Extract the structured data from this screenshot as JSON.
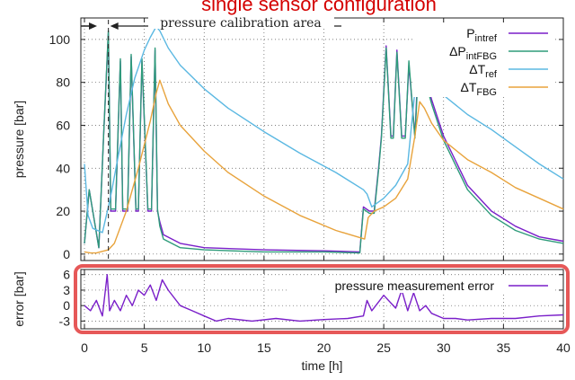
{
  "title": "single sensor configuration",
  "chart_data": [
    {
      "type": "line",
      "annotation": "pressure calibration area",
      "annotation_x_range": [
        0,
        2
      ],
      "xlabel": "",
      "ylabel": "pressure [bar]",
      "xlim": [
        -0.3,
        40
      ],
      "ylim": [
        -3,
        110
      ],
      "yticks": [
        0,
        20,
        40,
        60,
        80,
        100
      ],
      "xticks": [
        0,
        5,
        10,
        15,
        20,
        25,
        30,
        35,
        40
      ],
      "grid": true,
      "legend_position": "top-right",
      "series": [
        {
          "name": "P",
          "sub": "int",
          "subsub": "ref",
          "color": "#7a1fc9",
          "x": [
            0,
            0.4,
            1.2,
            1.6,
            2.0,
            2.2,
            2.6,
            3.0,
            3.2,
            3.6,
            3.9,
            4.3,
            4.5,
            4.8,
            5.3,
            5.6,
            5.9,
            6.1,
            6.3,
            6.6,
            8,
            10,
            15,
            20,
            23,
            23.3,
            23.8,
            24.2,
            24.6,
            24.8,
            25.2,
            25.6,
            25.8,
            26.1,
            26.5,
            26.8,
            27.1,
            27.6,
            27.9,
            28.2,
            29,
            30,
            32,
            34,
            36,
            38,
            40
          ],
          "y": [
            5,
            30,
            3,
            55,
            103,
            20,
            20,
            90,
            20,
            20,
            92,
            20,
            20,
            90,
            20,
            20,
            95,
            20,
            15,
            9,
            5,
            3,
            2,
            1.5,
            1,
            22,
            20,
            20,
            42,
            55,
            97,
            55,
            55,
            95,
            55,
            55,
            88,
            55,
            92,
            88,
            72,
            55,
            32,
            20,
            13,
            8,
            6
          ]
        },
        {
          "name": "ΔP",
          "sub": "int",
          "subsub": "FBG",
          "color": "#2e9b7a",
          "x": [
            0,
            0.4,
            1.2,
            1.6,
            2.0,
            2.2,
            2.6,
            3.0,
            3.2,
            3.6,
            3.9,
            4.3,
            4.5,
            4.8,
            5.3,
            5.6,
            5.9,
            6.1,
            6.3,
            6.6,
            8,
            10,
            15,
            20,
            23,
            23.3,
            23.8,
            24.2,
            24.6,
            24.8,
            25.2,
            25.6,
            25.8,
            26.1,
            26.5,
            26.8,
            27.1,
            27.6,
            27.9,
            28.2,
            29,
            30,
            32,
            34,
            36,
            38,
            40
          ],
          "y": [
            5,
            30,
            3,
            55,
            104,
            21,
            21,
            91,
            21,
            21,
            93,
            21,
            21,
            91,
            21,
            21,
            96,
            21,
            13,
            7,
            3,
            2,
            1,
            1,
            0.5,
            21,
            19,
            19,
            41,
            54,
            96,
            54,
            54,
            94,
            54,
            54,
            90,
            54,
            88,
            86,
            70,
            53,
            30,
            18,
            11,
            7,
            5
          ]
        },
        {
          "name": "ΔT",
          "sub": "ref",
          "subsub": "",
          "color": "#5bb8e2",
          "x": [
            0,
            0.3,
            0.7,
            1.5,
            2.0,
            2.3,
            2.8,
            3.5,
            4.2,
            5.0,
            5.5,
            6.0,
            6.3,
            7,
            8,
            10,
            12,
            15,
            18,
            21,
            23.3,
            23.6,
            24,
            25,
            26,
            27,
            27.5,
            28,
            28.3,
            29,
            30,
            32,
            34,
            36,
            38,
            40
          ],
          "y": [
            42,
            18,
            12,
            10,
            22,
            30,
            45,
            65,
            82,
            95,
            101,
            106,
            104,
            96,
            88,
            77,
            68,
            57,
            47,
            38,
            30,
            28,
            22,
            26,
            32,
            42,
            70,
            99,
            95,
            84,
            74,
            65,
            58,
            50,
            42,
            35
          ]
        },
        {
          "name": "ΔT",
          "sub": "FBG",
          "subsub": "",
          "color": "#e8a33c",
          "x": [
            0,
            0.5,
            1.0,
            2.0,
            2.5,
            3.5,
            4.5,
            5.5,
            6.0,
            6.3,
            7,
            8,
            10,
            12,
            15,
            18,
            21,
            23.4,
            23.7,
            24.2,
            25,
            26,
            27,
            27.6,
            28,
            28.4,
            29,
            30,
            32,
            34,
            36,
            38,
            40
          ],
          "y": [
            1,
            0.5,
            0.5,
            2,
            5,
            20,
            40,
            62,
            75,
            81,
            70,
            60,
            48,
            38,
            27,
            18,
            11,
            7,
            17,
            20,
            22,
            26,
            35,
            55,
            71,
            68,
            61,
            53,
            44,
            38,
            31,
            26,
            21
          ]
        }
      ]
    },
    {
      "type": "line",
      "xlabel": "time [h]",
      "ylabel": "error [bar]",
      "xlim": [
        -0.3,
        40
      ],
      "ylim": [
        -4.5,
        7
      ],
      "yticks": [
        -3,
        0,
        3,
        6
      ],
      "xticks": [
        0,
        5,
        10,
        15,
        20,
        25,
        30,
        35,
        40
      ],
      "xticklabels": [
        "0",
        "5",
        "10",
        "15",
        "20",
        "25",
        "30",
        "35",
        "40"
      ],
      "grid": true,
      "highlight_box": true,
      "legend_position": "top-right",
      "series": [
        {
          "name": "pressure measurement error",
          "color": "#7a1fc9",
          "x": [
            0,
            0.5,
            1,
            1.5,
            1.9,
            2.1,
            2.5,
            3,
            3.5,
            4,
            4.5,
            5,
            5.5,
            6,
            6.5,
            7,
            8,
            9,
            10,
            11,
            12,
            14,
            16,
            18,
            20,
            22,
            23.3,
            23.6,
            24,
            25,
            26,
            26.5,
            27,
            27.5,
            28,
            28.5,
            29,
            30,
            31,
            32,
            34,
            36,
            38,
            40
          ],
          "y": [
            0,
            -1,
            1,
            -2,
            6,
            -1,
            1,
            -1,
            2,
            0,
            3,
            2,
            4,
            1,
            5,
            3,
            0,
            -1,
            -2,
            -3,
            -2.5,
            -3,
            -2.5,
            -3,
            -2.7,
            -2.5,
            -2,
            1,
            -1,
            2,
            -0.5,
            3,
            -1,
            2.5,
            -1,
            0,
            -1.5,
            -2.5,
            -2.5,
            -2.8,
            -2.5,
            -2.5,
            -2,
            -1.8
          ]
        }
      ]
    }
  ]
}
